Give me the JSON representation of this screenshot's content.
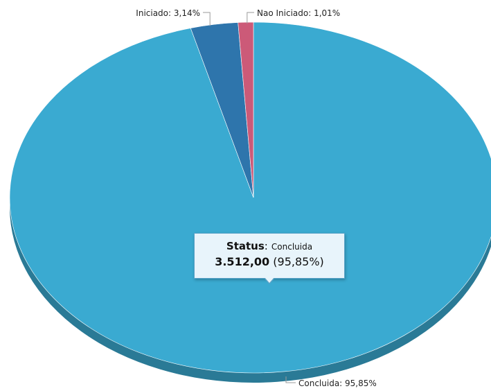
{
  "chart_data": {
    "type": "pie",
    "style": "3d",
    "title": "",
    "categories": [
      "Concluida",
      "Iniciado",
      "Nao Iniciado"
    ],
    "values": [
      95.85,
      3.14,
      1.01
    ],
    "labels": [
      "Concluida: 95,85%",
      "Iniciado: 3,14%",
      "Nao Iniciado: 1,01%"
    ],
    "colors": [
      "#3aaad1",
      "#2e75ac",
      "#cc5a78"
    ],
    "tooltip": {
      "key": "Status",
      "separator": ":",
      "category": "Concluida",
      "value": "3.512,00",
      "percent": "(95,85%)"
    }
  }
}
